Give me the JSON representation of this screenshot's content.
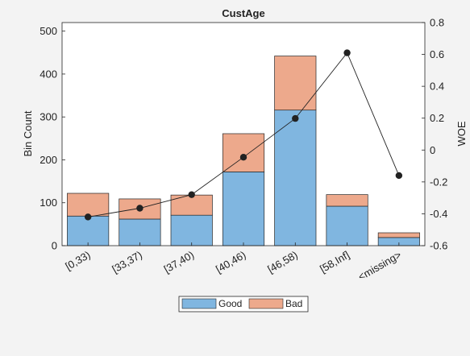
{
  "chart_data": {
    "type": "bar",
    "title": "CustAge",
    "xlabel": "",
    "ylabel": "Bin Count",
    "y2label": "WOE",
    "categories": [
      "[0,33)",
      "[33,37)",
      "[37,40)",
      "[40,46)",
      "[46,58)",
      "[58,Inf]",
      "<missing>"
    ],
    "series": [
      {
        "name": "Good",
        "type": "stacked-bar",
        "color": "#80b6e0",
        "values": [
          69,
          62,
          71,
          172,
          316,
          92,
          19
        ]
      },
      {
        "name": "Bad",
        "type": "stacked-bar",
        "color": "#eda98c",
        "values": [
          53,
          47,
          47,
          89,
          126,
          27,
          11
        ]
      },
      {
        "name": "",
        "type": "line",
        "axis": "right",
        "color": "#222222",
        "values": [
          -0.42,
          -0.365,
          -0.28,
          -0.045,
          0.198,
          0.61,
          -0.16
        ]
      }
    ],
    "ylim": [
      0,
      520
    ],
    "yticks": [
      0,
      100,
      200,
      300,
      400,
      500
    ],
    "y2lim": [
      -0.6,
      0.8
    ],
    "y2ticks": [
      "-0.6",
      "-0.4",
      "-0.2",
      "0",
      "0.2",
      "0.4",
      "0.6",
      "0.8"
    ],
    "grid": false,
    "legend_position": "bottom-center"
  }
}
